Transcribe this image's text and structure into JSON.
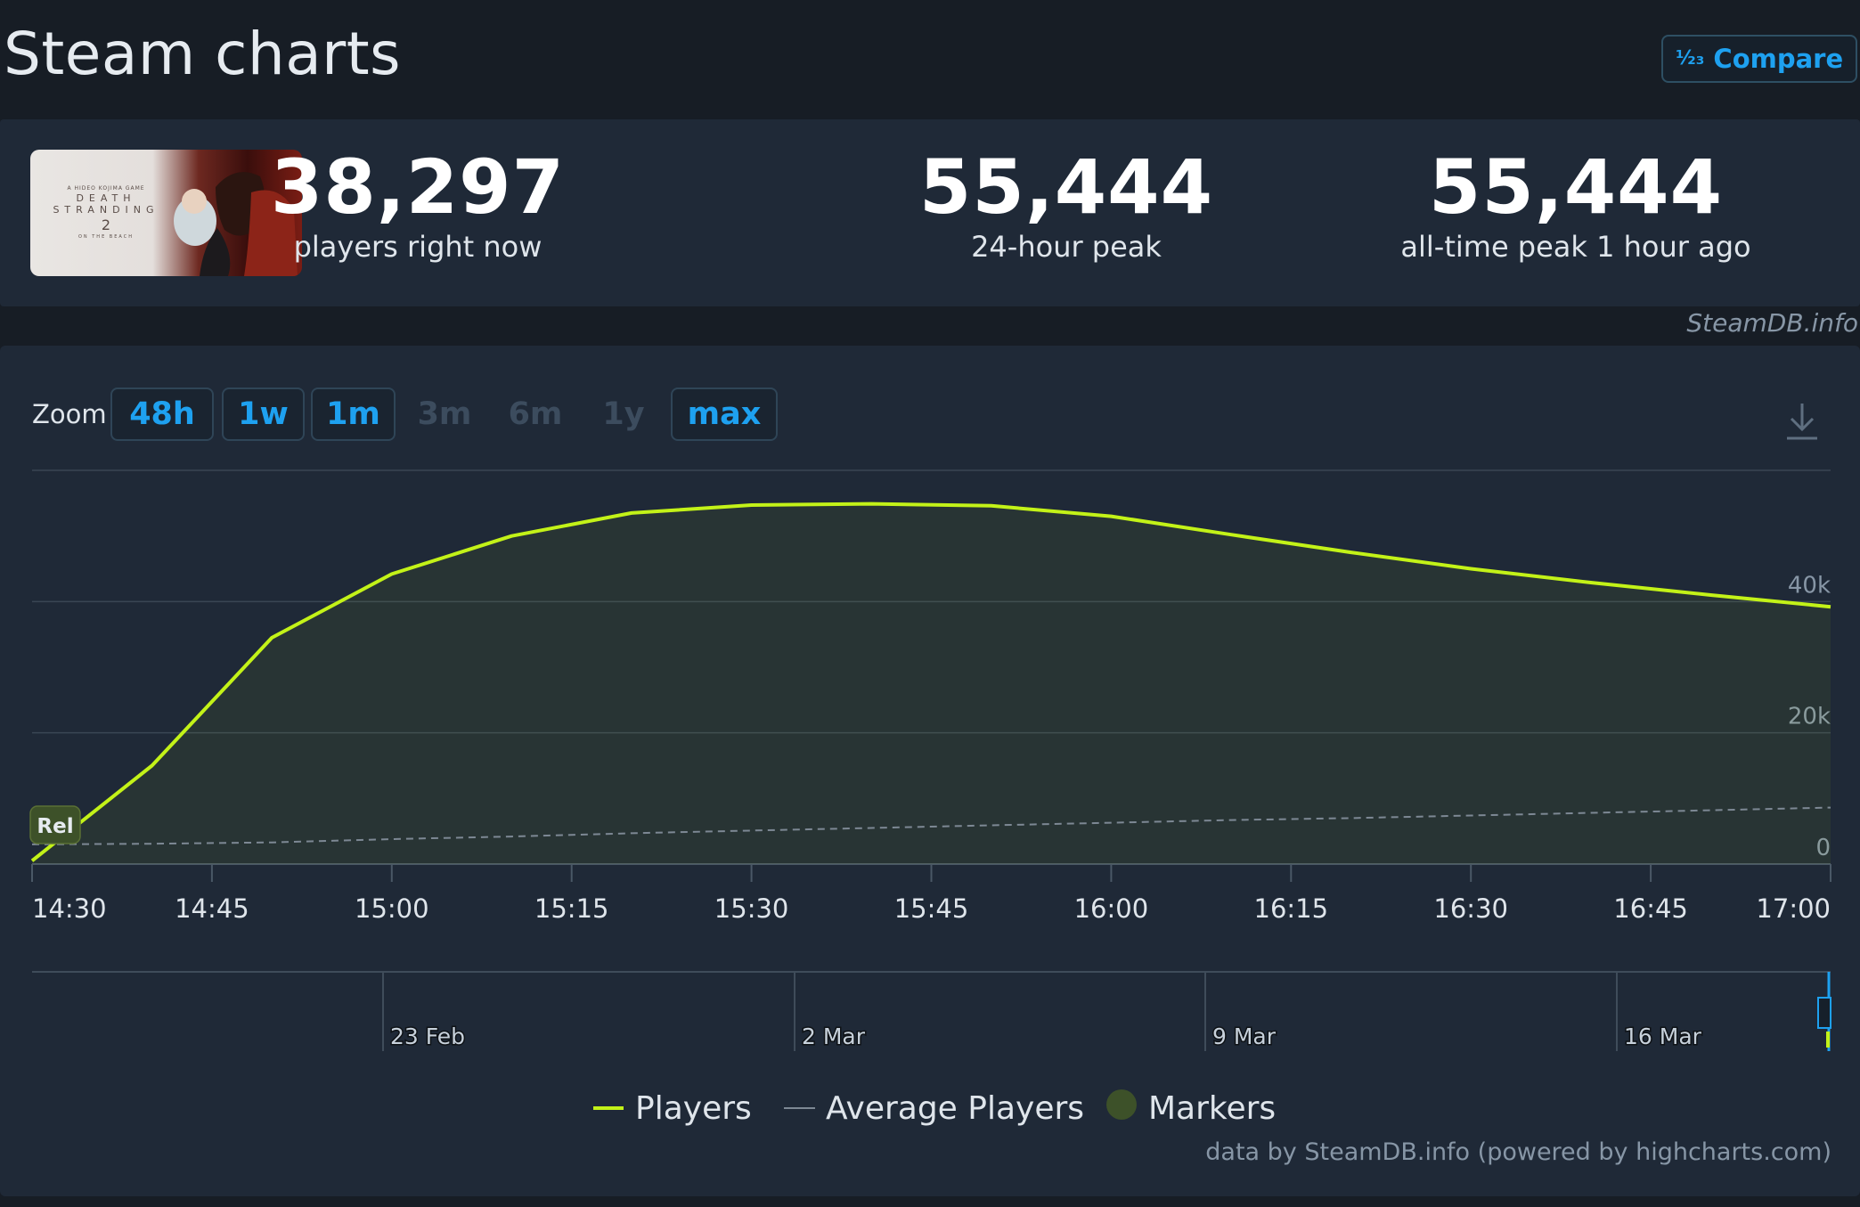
{
  "header": {
    "title": "Steam charts",
    "compare_label": "Compare",
    "compare_icon": "1/2/3 numeric icon"
  },
  "stats": {
    "current": {
      "value": "38,297",
      "label": "players right now"
    },
    "peak24": {
      "value": "55,444",
      "label": "24-hour peak"
    },
    "alltime": {
      "value": "55,444",
      "label": "all-time peak 1 hour ago"
    }
  },
  "thumbnail": {
    "lines": [
      "A HIDEO KOJIMA GAME",
      "DEATH",
      "STRANDING",
      "2",
      "ON THE BEACH"
    ]
  },
  "watermark": "SteamDB.info",
  "zoom": {
    "label": "Zoom",
    "options": [
      {
        "label": "48h",
        "enabled": true
      },
      {
        "label": "1w",
        "enabled": true
      },
      {
        "label": "1m",
        "enabled": true
      },
      {
        "label": "3m",
        "enabled": false
      },
      {
        "label": "6m",
        "enabled": false
      },
      {
        "label": "1y",
        "enabled": false
      },
      {
        "label": "max",
        "enabled": true
      }
    ]
  },
  "chart_data": {
    "type": "area",
    "x": [
      "14:30",
      "14:40",
      "14:50",
      "15:00",
      "15:10",
      "15:20",
      "15:30",
      "15:40",
      "15:50",
      "16:00",
      "16:10",
      "16:20",
      "16:30",
      "16:40",
      "16:50",
      "17:00"
    ],
    "series": [
      {
        "name": "Players",
        "values": [
          500,
          15000,
          34500,
          44200,
          50000,
          53500,
          54700,
          54900,
          54600,
          53000,
          50200,
          47500,
          45000,
          42900,
          41000,
          39200
        ]
      },
      {
        "name": "Average Players",
        "values": [
          3000,
          3100,
          3300,
          3800,
          4200,
          4700,
          5100,
          5500,
          5900,
          6300,
          6700,
          7000,
          7400,
          7800,
          8200,
          8600
        ]
      }
    ],
    "marker": {
      "label": "Rel",
      "x": "14:30"
    },
    "x_ticks": [
      "14:30",
      "14:45",
      "15:00",
      "15:15",
      "15:30",
      "15:45",
      "16:00",
      "16:15",
      "16:30",
      "16:45",
      "17:00"
    ],
    "y_ticks": [
      "0",
      "20k",
      "40k"
    ],
    "ylim": [
      0,
      60000
    ],
    "grid": true,
    "navigator_labels": [
      "23 Feb",
      "2 Mar",
      "9 Mar",
      "16 Mar"
    ],
    "legend": [
      "Players",
      "Average Players",
      "Markers"
    ],
    "legend_position": "bottom-center",
    "colors": {
      "players": "#c3f218",
      "average": "#7d8894",
      "markers": "#3d5129"
    }
  },
  "credits": "data by SteamDB.info (powered by highcharts.com)"
}
